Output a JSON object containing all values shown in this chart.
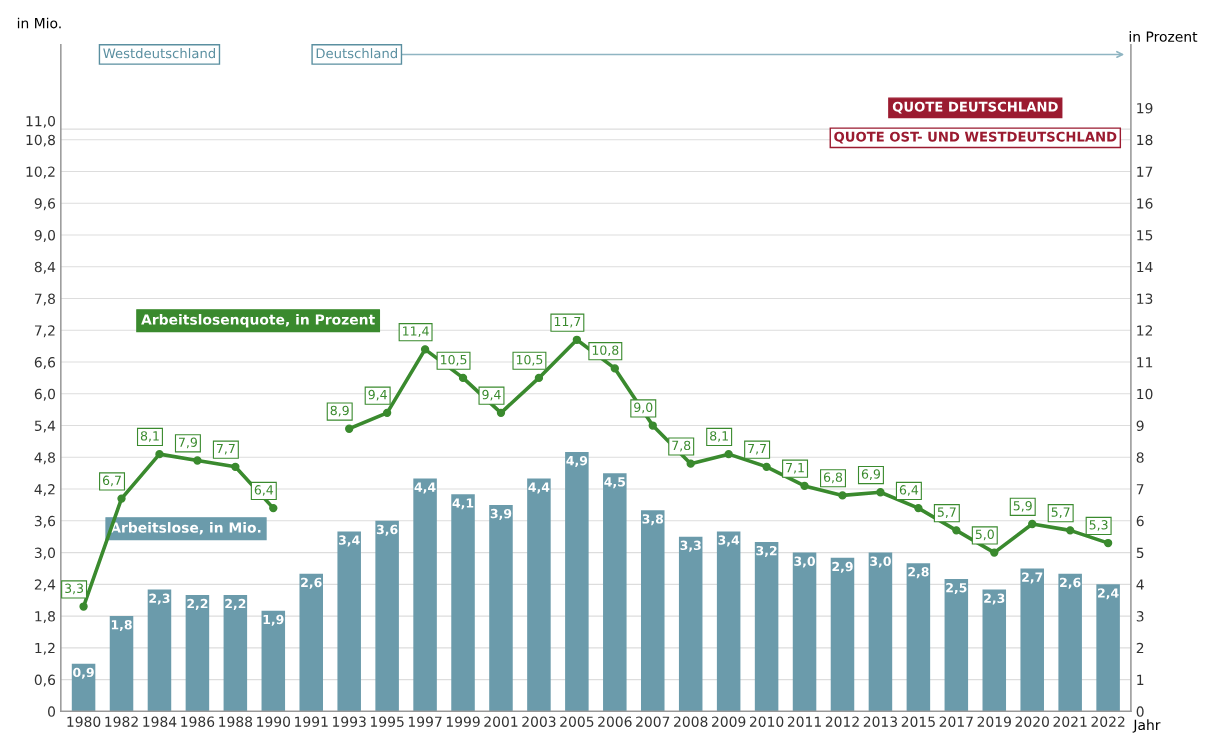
{
  "chart_data": {
    "type": "bar",
    "xlabel": "Jahr",
    "ylabel": "in Mio.",
    "y2label": "in Prozent",
    "categories": [
      "1980",
      "1982",
      "1984",
      "1986",
      "1988",
      "1990",
      "1991",
      "1993",
      "1995",
      "1997",
      "1999",
      "2001",
      "2003",
      "2005",
      "2006",
      "2007",
      "2008",
      "2009",
      "2010",
      "2011",
      "2012",
      "2013",
      "2015",
      "2017",
      "2019",
      "2020",
      "2021",
      "2022"
    ],
    "series": [
      {
        "name": "Arbeitslose, in Mio.",
        "color": "#6b9bab",
        "values": [
          0.9,
          1.8,
          2.3,
          2.2,
          2.2,
          1.9,
          2.6,
          3.4,
          3.6,
          4.4,
          4.1,
          3.9,
          4.4,
          4.9,
          4.5,
          3.8,
          3.3,
          3.4,
          3.2,
          3.0,
          2.9,
          3.0,
          2.8,
          2.5,
          2.3,
          2.7,
          2.6,
          2.4
        ],
        "value_labels": [
          "0,9",
          "1,8",
          "2,3",
          "2,2",
          "2,2",
          "1,9",
          "2,6",
          "3,4",
          "3,6",
          "4,4",
          "4,1",
          "3,9",
          "4,4",
          "4,9",
          "4,5",
          "3,8",
          "3,3",
          "3,4",
          "3,2",
          "3,0",
          "2,9",
          "3,0",
          "2,8",
          "2,5",
          "2,3",
          "2,7",
          "2,6",
          "2,4"
        ]
      },
      {
        "name": "Arbeitslosenquote, in Prozent",
        "type": "line",
        "axis": "y2",
        "color": "#3a8a2e",
        "values": [
          3.3,
          6.7,
          8.1,
          7.9,
          7.7,
          6.4,
          null,
          8.9,
          9.4,
          11.4,
          10.5,
          9.4,
          10.5,
          11.7,
          10.8,
          9.0,
          7.8,
          8.1,
          7.7,
          7.1,
          6.8,
          6.9,
          6.4,
          5.7,
          5.0,
          5.9,
          5.7,
          5.3
        ],
        "value_labels": [
          "3,3",
          "6,7",
          "8,1",
          "7,9",
          "7,7",
          "6,4",
          null,
          "8,9",
          "9,4",
          "11,4",
          "10,5",
          "9,4",
          "10,5",
          "11,7",
          "10,8",
          "9,0",
          "7,8",
          "8,1",
          "7,7",
          "7,1",
          "6,8",
          "6,9",
          "6,4",
          "5,7",
          "5,0",
          "5,9",
          "5,7",
          "5,3"
        ]
      }
    ],
    "ylim": [
      0,
      12.6
    ],
    "yticks": [
      0,
      {
        "value": 0.6,
        "label": "0,6"
      },
      {
        "value": 1.2,
        "label": "1,2"
      },
      {
        "value": 1.8,
        "label": "1,8"
      },
      {
        "value": 2.4,
        "label": "2,4"
      },
      {
        "value": 3.0,
        "label": "3,0"
      },
      {
        "value": 3.6,
        "label": "3,6"
      },
      {
        "value": 4.2,
        "label": "4,2"
      },
      {
        "value": 4.8,
        "label": "4,8"
      },
      {
        "value": 5.4,
        "label": "5,4"
      },
      {
        "value": 6.0,
        "label": "6,0"
      },
      {
        "value": 6.6,
        "label": "6,6"
      },
      {
        "value": 7.2,
        "label": "7,2"
      },
      {
        "value": 7.8,
        "label": "7,8"
      },
      {
        "value": 8.4,
        "label": "8,4"
      },
      {
        "value": 9.0,
        "label": "9,0"
      },
      {
        "value": 9.6,
        "label": "9,6"
      },
      {
        "value": 10.2,
        "label": "10,2"
      },
      {
        "value": 10.8,
        "label": "10,8"
      },
      {
        "value": 11.0,
        "label": "11,0"
      }
    ],
    "y2lim": [
      0,
      21
    ],
    "y2ticks": [
      0,
      1,
      2,
      3,
      4,
      5,
      6,
      7,
      8,
      9,
      10,
      11,
      12,
      13,
      14,
      15,
      16,
      17,
      18,
      19
    ],
    "grid": "y",
    "legend": false,
    "marker": "circle",
    "line_style": "solid",
    "annotations": [
      "Westdeutschland",
      "Deutschland",
      "QUOTE DEUTSCHLAND",
      "QUOTE OST- UND WESTDEUTSCHLAND"
    ]
  }
}
